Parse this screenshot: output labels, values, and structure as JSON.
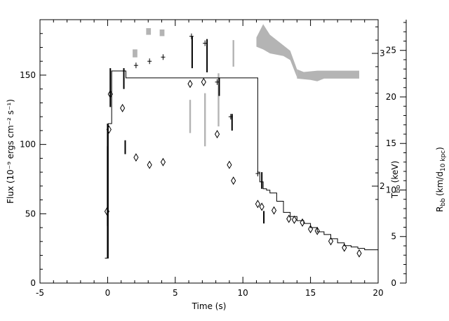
{
  "chart_data": {
    "type": "scatter",
    "xlabel": "Time (s)",
    "ylabel": "Flux (10⁻⁹ ergs cm⁻² s⁻¹)",
    "right_inner_label": "T",
    "right_inner_label_sub": "bb",
    "right_inner_label_unit": "(keV)",
    "right_outer_label": "R",
    "right_outer_label_sub": "bb",
    "right_outer_label_unit_a": "(km/d",
    "right_outer_label_unit_sub": "10 kpc",
    "right_outer_label_unit_b": ")",
    "xlim": [
      -5,
      20
    ],
    "ylim": [
      0,
      190
    ],
    "x_ticks": [
      -5,
      0,
      5,
      10,
      15,
      20
    ],
    "y_ticks": [
      0,
      50,
      100,
      150
    ],
    "T_ticks": [
      2,
      3
    ],
    "R_ticks": [
      0,
      5,
      10,
      15,
      20,
      25
    ],
    "R_ylim": [
      0,
      28.3
    ],
    "flux_step_x": [
      -0.2,
      0.05,
      0.3,
      1.0,
      1.35,
      11.1,
      11.25,
      11.5,
      11.75,
      12.0,
      12.5,
      13.0,
      13.5,
      14.0,
      14.5,
      15.0,
      15.5,
      16.0,
      16.5,
      17.0,
      17.5,
      18.0,
      18.5,
      19.0,
      20.0
    ],
    "flux_step_y": [
      18,
      115,
      153,
      153,
      148,
      80,
      73,
      68,
      67,
      65,
      59,
      51,
      48,
      45,
      43,
      40,
      37,
      35,
      32,
      29,
      27,
      26,
      25,
      24,
      23
    ],
    "flux_errbars": [
      {
        "x": 0.0,
        "lo": 18,
        "hi": 115
      },
      {
        "x": 0.2,
        "lo": 127,
        "hi": 155
      },
      {
        "x": 1.2,
        "lo": 140,
        "hi": 155
      },
      {
        "x": 1.3,
        "lo": 93,
        "hi": 103
      },
      {
        "x": 6.25,
        "lo": 155,
        "hi": 178
      },
      {
        "x": 7.35,
        "lo": 152,
        "hi": 176
      },
      {
        "x": 8.25,
        "lo": 135,
        "hi": 148
      },
      {
        "x": 9.2,
        "lo": 110,
        "hi": 122
      },
      {
        "x": 11.4,
        "lo": 68,
        "hi": 80
      },
      {
        "x": 11.55,
        "lo": 43,
        "hi": 52
      }
    ],
    "flux_points": [
      {
        "x": 1.2,
        "y": 153
      },
      {
        "x": 2.1,
        "y": 157
      },
      {
        "x": 3.1,
        "y": 160
      },
      {
        "x": 4.1,
        "y": 163
      },
      {
        "x": 6.2,
        "y": 178
      },
      {
        "x": 7.2,
        "y": 173
      },
      {
        "x": 8.1,
        "y": 145
      },
      {
        "x": 9.1,
        "y": 120
      },
      {
        "x": 11.1,
        "y": 79
      }
    ],
    "radius_points": [
      {
        "x": -0.05,
        "y": 7.7
      },
      {
        "x": 0.1,
        "y": 16.5
      },
      {
        "x": 0.2,
        "y": 20.3
      },
      {
        "x": 1.1,
        "y": 18.8
      },
      {
        "x": 2.1,
        "y": 13.5
      },
      {
        "x": 3.1,
        "y": 12.7
      },
      {
        "x": 4.1,
        "y": 13.0
      },
      {
        "x": 6.1,
        "y": 21.4
      },
      {
        "x": 7.1,
        "y": 21.6
      },
      {
        "x": 8.1,
        "y": 16.0
      },
      {
        "x": 9.0,
        "y": 12.7
      },
      {
        "x": 9.3,
        "y": 11.0
      },
      {
        "x": 11.1,
        "y": 8.5
      },
      {
        "x": 11.4,
        "y": 8.2
      },
      {
        "x": 12.3,
        "y": 7.8
      },
      {
        "x": 13.4,
        "y": 6.9
      },
      {
        "x": 13.8,
        "y": 6.8
      },
      {
        "x": 14.4,
        "y": 6.5
      },
      {
        "x": 15.0,
        "y": 5.8
      },
      {
        "x": 15.5,
        "y": 5.6
      },
      {
        "x": 16.5,
        "y": 4.5
      },
      {
        "x": 17.5,
        "y": 3.8
      },
      {
        "x": 18.6,
        "y": 3.2
      }
    ],
    "temperature_band": [
      {
        "x0": 1.85,
        "x1": 2.2,
        "lo": 2.97,
        "hi": 3.03
      },
      {
        "x0": 2.85,
        "x1": 3.2,
        "lo": 3.14,
        "hi": 3.19
      },
      {
        "x0": 3.85,
        "x1": 4.2,
        "lo": 3.13,
        "hi": 3.18
      },
      {
        "x0": 11.0,
        "x1": 14.0,
        "poly": [
          [
            11.0,
            3.12
          ],
          [
            11.5,
            3.22
          ],
          [
            12.0,
            3.14
          ],
          [
            13.0,
            3.06
          ],
          [
            13.5,
            3.02
          ],
          [
            14.0,
            2.88
          ],
          [
            14.0,
            2.82
          ],
          [
            13.5,
            2.95
          ],
          [
            13.0,
            2.98
          ],
          [
            12.0,
            3.0
          ],
          [
            11.5,
            3.03
          ],
          [
            11.0,
            3.05
          ]
        ]
      },
      {
        "x0": 14.0,
        "x1": 18.6,
        "poly": [
          [
            14.0,
            2.88
          ],
          [
            14.5,
            2.86
          ],
          [
            15.5,
            2.87
          ],
          [
            16.0,
            2.87
          ],
          [
            18.6,
            2.87
          ],
          [
            18.6,
            2.81
          ],
          [
            16.0,
            2.81
          ],
          [
            15.5,
            2.79
          ],
          [
            15.0,
            2.8
          ],
          [
            14.0,
            2.81
          ]
        ]
      }
    ],
    "grid": false,
    "legend": "none"
  }
}
